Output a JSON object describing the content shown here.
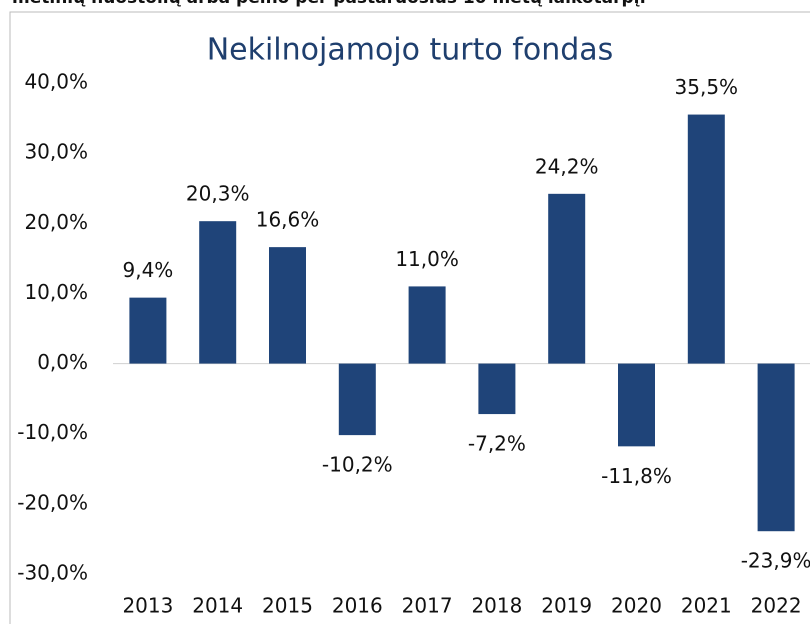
{
  "header": {
    "caption": "metinių nuostolių arba pelno per pastaruosius 10 metų laikotarpį."
  },
  "chart_data": {
    "type": "bar",
    "title": "Nekilnojamojo turto fondas",
    "categories": [
      "2013",
      "2014",
      "2015",
      "2016",
      "2017",
      "2018",
      "2019",
      "2020",
      "2021",
      "2022"
    ],
    "values": [
      9.4,
      20.3,
      16.6,
      -10.2,
      11.0,
      -7.2,
      24.2,
      -11.8,
      35.5,
      -23.9
    ],
    "value_labels": [
      "9,4%",
      "20,3%",
      "16,6%",
      "-10,2%",
      "11,0%",
      "-7,2%",
      "24,2%",
      "-11,8%",
      "35,5%",
      "-23,9%"
    ],
    "color": "#1f4479",
    "ylim": [
      -30,
      40
    ],
    "yticks": [
      {
        "value": -30,
        "label": "-30,0%"
      },
      {
        "value": -20,
        "label": "-20,0%"
      },
      {
        "value": -10,
        "label": "-10,0%"
      },
      {
        "value": 0,
        "label": "0,0%"
      },
      {
        "value": 10,
        "label": "10,0%"
      },
      {
        "value": 20,
        "label": "20,0%"
      },
      {
        "value": 30,
        "label": "30,0%"
      },
      {
        "value": 40,
        "label": "40,0%"
      }
    ],
    "grid": false
  }
}
